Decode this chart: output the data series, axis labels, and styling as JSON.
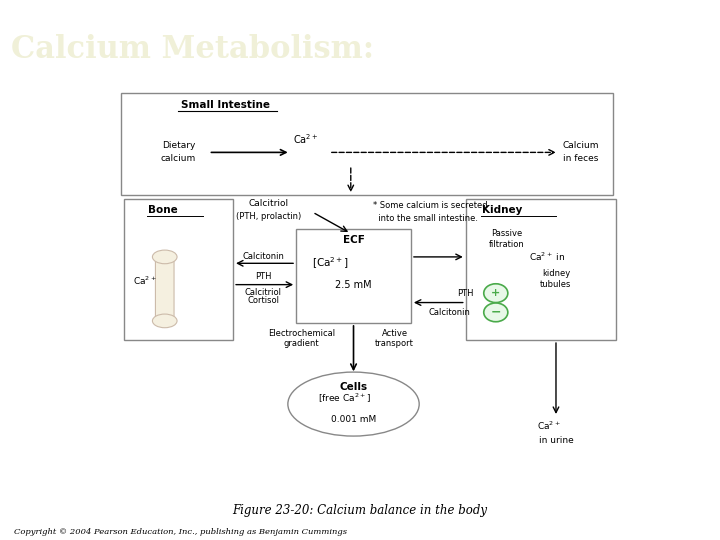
{
  "title": "Calcium Metabolism:",
  "title_bg_color": "#3a7a7a",
  "title_text_color": "#f0f0d8",
  "title_fontsize": 22,
  "figure_bg_color": "#ffffff",
  "diagram_bg_color": "#fdf0e0",
  "figure_caption": "Figure 23-20: Calcium balance in the body",
  "copyright": "Copyright © 2004 Pearson Education, Inc., publishing as Benjamin Cummings"
}
